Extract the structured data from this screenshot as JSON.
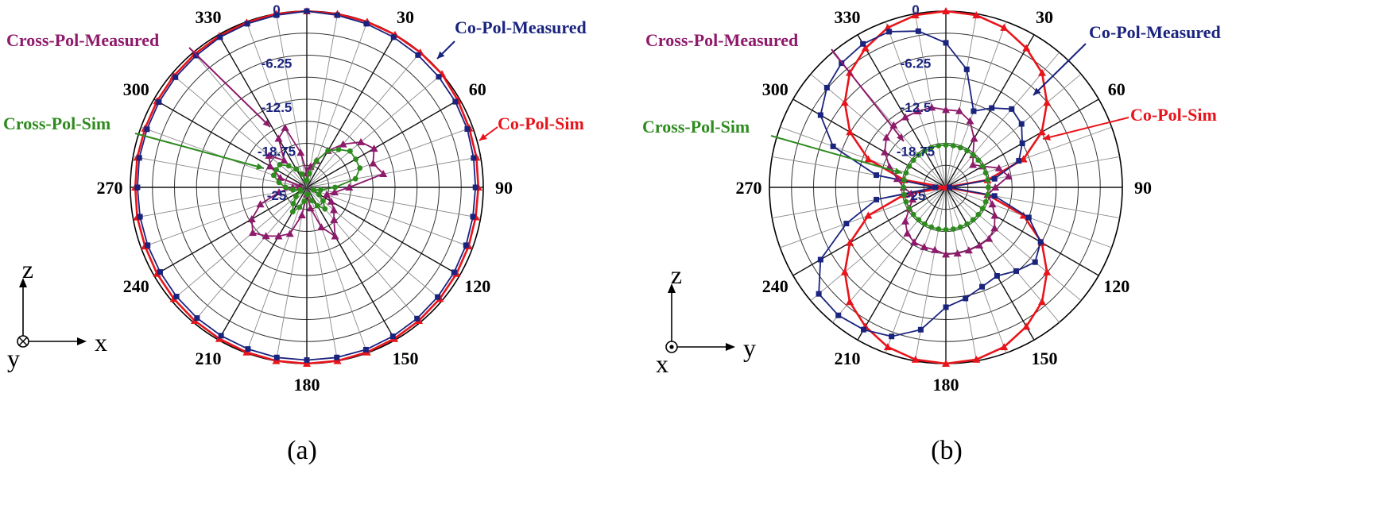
{
  "chart_data": [
    {
      "type": "polar-line",
      "caption": "(a)",
      "angle_labels": [
        "0",
        "30",
        "60",
        "90",
        "120",
        "150",
        "180",
        "210",
        "240",
        "270",
        "300",
        "330"
      ],
      "radial_ticks": [
        "0",
        "-6.25",
        "-12.5",
        "-18.75",
        "-25"
      ],
      "radial_range": [
        -25,
        0
      ],
      "angle_step_deg": 10,
      "coordinate_axes": {
        "up": "z",
        "right": "x",
        "origin": "y",
        "origin_symbol": "into"
      },
      "series": [
        {
          "name": "Co-Pol-Sim",
          "color": "#e8141b",
          "marker": "triangle",
          "values": [
            0,
            0,
            0,
            0,
            0,
            0,
            -0.3,
            -0.5,
            -0.6,
            -0.7,
            -0.7,
            -0.6,
            -0.5,
            -0.4,
            -0.3,
            -0.2,
            -0.1,
            0,
            0,
            0,
            -0.1,
            -0.2,
            -0.3,
            -0.4,
            -0.5,
            -0.6,
            -0.6,
            -0.7,
            -0.6,
            -0.6,
            -0.5,
            -0.4,
            -0.3,
            -0.2,
            -0.1,
            0
          ]
        },
        {
          "name": "Co-Pol-Measured",
          "color": "#1a237e",
          "marker": "square",
          "values": [
            0,
            -0.2,
            -0.3,
            -0.4,
            -0.5,
            -0.6,
            -0.7,
            -0.8,
            -1.0,
            -1.1,
            -1.1,
            -1.0,
            -0.9,
            -0.8,
            -0.7,
            -0.6,
            -0.5,
            -0.5,
            -0.5,
            -0.5,
            -0.6,
            -0.7,
            -0.8,
            -0.9,
            -1.0,
            -1.0,
            -1.0,
            -1.0,
            -0.9,
            -0.9,
            -0.8,
            -0.7,
            -0.6,
            -0.4,
            -0.3,
            -0.2
          ]
        },
        {
          "name": "Cross-Pol-Measured",
          "color": "#8e1a6b",
          "marker": "triangle",
          "values": [
            -23,
            -22,
            -21,
            -19,
            -17,
            -15,
            -14,
            -15,
            -14,
            -19,
            -21,
            -22,
            -21,
            -20,
            -19,
            -17,
            -19,
            -22,
            -24,
            -21,
            -18,
            -17,
            -16,
            -15,
            -16,
            -18,
            -21,
            -23,
            -24,
            -21,
            -19,
            -18,
            -20,
            -17,
            -16,
            -20
          ]
        },
        {
          "name": "Cross-Pol-Sim",
          "color": "#2e8b1e",
          "marker": "circle",
          "values": [
            -24,
            -23,
            -21,
            -19,
            -18,
            -17,
            -17,
            -17,
            -18,
            -21,
            -23,
            -24,
            -23,
            -22,
            -21,
            -22,
            -23,
            -24,
            -24,
            -23,
            -22,
            -21,
            -22,
            -23,
            -24,
            -24,
            -23,
            -22,
            -21,
            -20,
            -20,
            -20,
            -21,
            -22,
            -23,
            -24
          ]
        }
      ]
    },
    {
      "type": "polar-line",
      "caption": "(b)",
      "angle_labels": [
        "0",
        "30",
        "60",
        "90",
        "120",
        "150",
        "180",
        "210",
        "240",
        "270",
        "300",
        "330"
      ],
      "radial_ticks": [
        "0",
        "-6.25",
        "-12.5",
        "-18.75",
        "-25"
      ],
      "radial_range": [
        -25,
        0
      ],
      "angle_step_deg": 10,
      "coordinate_axes": {
        "up": "z",
        "right": "y",
        "origin": "x",
        "origin_symbol": "out"
      },
      "series": [
        {
          "name": "Co-Pol-Sim",
          "color": "#e8141b",
          "marker": "triangle",
          "values": [
            0,
            -0.2,
            -0.9,
            -2.2,
            -3.8,
            -6.3,
            -9.3,
            -13.3,
            -19,
            -25,
            -19,
            -13.3,
            -9.3,
            -6.3,
            -3.8,
            -2.2,
            -0.9,
            -0.2,
            0,
            -0.2,
            -0.9,
            -2.2,
            -3.8,
            -6.3,
            -9.3,
            -13.3,
            -19,
            -25,
            -19,
            -13.3,
            -9.3,
            -6.3,
            -3.8,
            -2.2,
            -0.9,
            -0.2
          ]
        },
        {
          "name": "Co-Pol-Measured",
          "color": "#1a237e",
          "marker": "square",
          "values": [
            -4.5,
            -8,
            -13.5,
            -12,
            -10.5,
            -11,
            -12.5,
            -14,
            -18,
            -24.5,
            -18,
            -12.5,
            -9.5,
            -8.5,
            -9.5,
            -10.5,
            -10,
            -9,
            -8,
            -4.5,
            -2.5,
            -1.7,
            -1.3,
            -1.5,
            -4.5,
            -10,
            -15,
            -23.5,
            -15,
            -8,
            -4.5,
            -3,
            -2,
            -1.5,
            -1.5,
            -2.5
          ]
        },
        {
          "name": "Cross-Pol-Measured",
          "color": "#8e1a6b",
          "marker": "triangle",
          "values": [
            -14,
            -14,
            -15,
            -17,
            -19,
            -20,
            -19,
            -17,
            -16,
            -18,
            -19,
            -18,
            -17,
            -16,
            -15.5,
            -15.5,
            -15.5,
            -15.5,
            -15.5,
            -16,
            -16,
            -16,
            -16.5,
            -17.5,
            -19,
            -20,
            -20,
            -19,
            -18,
            -16.5,
            -15,
            -14,
            -13.5,
            -13.5,
            -13.5,
            -13.5
          ]
        },
        {
          "name": "Cross-Pol-Sim",
          "color": "#2e8b1e",
          "marker": "circle",
          "values": [
            -19,
            -19,
            -19,
            -19,
            -19,
            -19,
            -19,
            -19,
            -19,
            -19,
            -19,
            -19,
            -19,
            -19,
            -19,
            -19,
            -19,
            -19,
            -19,
            -19,
            -19,
            -19,
            -19,
            -19,
            -19,
            -19,
            -19,
            -19,
            -19,
            -19,
            -19,
            -19,
            -19,
            -19,
            -19,
            -19
          ]
        }
      ]
    }
  ]
}
